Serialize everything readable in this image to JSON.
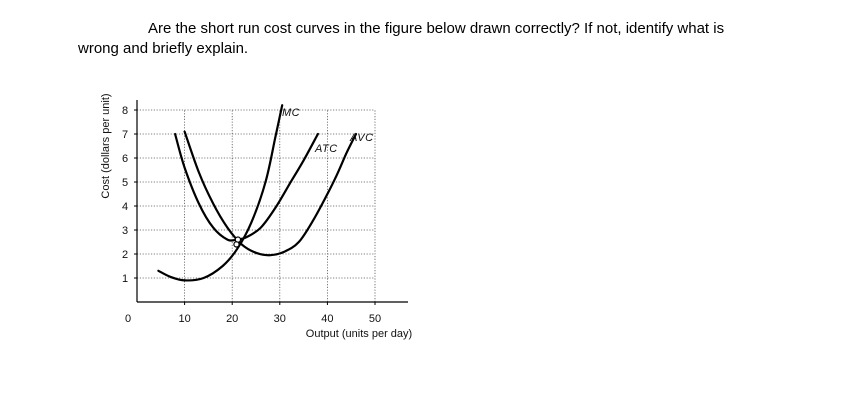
{
  "question": {
    "line1": "Are the short run cost curves in the figure below drawn correctly? If not, identify what is",
    "line2": "wrong and briefly explain."
  },
  "chart_data": {
    "type": "line",
    "xlabel": "Output (units per day)",
    "ylabel": "Cost (dollars per unit)",
    "xlim": [
      0,
      55
    ],
    "ylim": [
      0,
      8.5
    ],
    "x_ticks": [
      10,
      20,
      30,
      40,
      50
    ],
    "y_ticks": [
      1,
      2,
      3,
      4,
      5,
      6,
      7,
      8
    ],
    "origin_label": "0",
    "grid": true,
    "series": [
      {
        "name": "MC",
        "x": [
          4.5,
          7,
          10,
          14,
          18,
          21,
          24,
          27,
          29,
          30.5
        ],
        "y": [
          1.3,
          1.05,
          0.9,
          1.0,
          1.5,
          2.2,
          3.3,
          5.0,
          6.8,
          8.2
        ]
      },
      {
        "name": "ATC",
        "x": [
          8,
          10,
          13,
          16,
          19,
          21,
          23,
          26,
          29,
          32,
          35,
          38
        ],
        "y": [
          7.0,
          5.6,
          4.1,
          3.1,
          2.6,
          2.6,
          2.7,
          3.1,
          3.9,
          4.9,
          5.9,
          7.0
        ]
      },
      {
        "name": "AVC",
        "x": [
          10,
          13,
          16,
          19,
          22,
          25,
          28,
          31,
          34,
          37,
          40,
          42,
          44,
          46
        ],
        "y": [
          7.1,
          5.4,
          4.1,
          3.1,
          2.4,
          2.05,
          1.95,
          2.1,
          2.5,
          3.4,
          4.5,
          5.3,
          6.2,
          7.0
        ]
      }
    ],
    "intersection_markers": [
      {
        "x": 21.2,
        "y": 2.6
      },
      {
        "x": 20.9,
        "y": 2.4
      }
    ]
  }
}
